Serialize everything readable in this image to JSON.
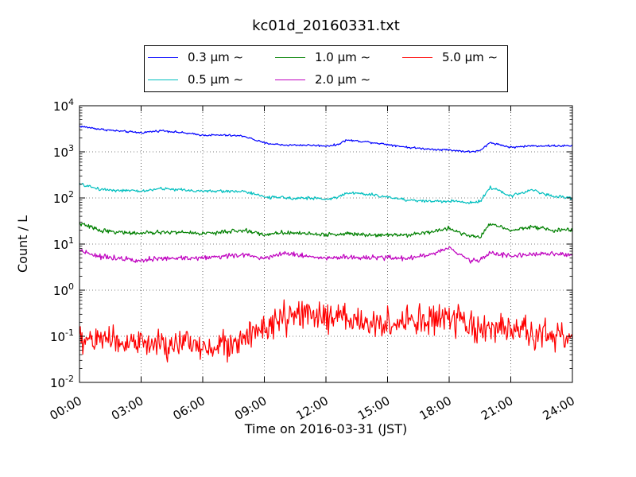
{
  "chart_data": {
    "type": "line",
    "title": "kc01d_20160331.txt",
    "xlabel": "Time on 2016-03-31 (JST)",
    "ylabel": "Count / L",
    "yscale": "log",
    "ylim": [
      0.01,
      10000
    ],
    "y_tick_labels": [
      {
        "base": "10",
        "exp": "-2"
      },
      {
        "base": "10",
        "exp": "-1"
      },
      {
        "base": "10",
        "exp": "0"
      },
      {
        "base": "10",
        "exp": "1"
      },
      {
        "base": "10",
        "exp": "2"
      },
      {
        "base": "10",
        "exp": "3"
      },
      {
        "base": "10",
        "exp": "4"
      }
    ],
    "x_ticks": [
      "00:00",
      "03:00",
      "06:00",
      "09:00",
      "12:00",
      "15:00",
      "18:00",
      "21:00",
      "24:00"
    ],
    "grid": true,
    "legend": "top-center",
    "x_hours": [
      0,
      1,
      2,
      3,
      4,
      5,
      6,
      7,
      8,
      9,
      10,
      11,
      12,
      12.5,
      13,
      14,
      15,
      16,
      17,
      18,
      19,
      19.5,
      20,
      21,
      22,
      23,
      24
    ],
    "series": [
      {
        "name": "0.3 μm ∼",
        "color": "#0000ff",
        "noise": 0.02,
        "values": [
          3600,
          3100,
          2800,
          2600,
          2900,
          2600,
          2300,
          2300,
          2200,
          1550,
          1400,
          1400,
          1350,
          1400,
          1800,
          1650,
          1450,
          1250,
          1150,
          1100,
          1000,
          1050,
          1600,
          1250,
          1350,
          1350,
          1350
        ]
      },
      {
        "name": "0.5 μm ∼",
        "color": "#00bfbf",
        "noise": 0.03,
        "values": [
          200,
          155,
          145,
          140,
          160,
          150,
          140,
          140,
          140,
          105,
          100,
          100,
          95,
          100,
          130,
          120,
          105,
          90,
          85,
          85,
          80,
          85,
          170,
          110,
          150,
          110,
          100
        ]
      },
      {
        "name": "1.0 μm ∼",
        "color": "#008000",
        "noise": 0.04,
        "values": [
          28,
          20,
          18,
          17,
          18,
          18,
          17,
          18,
          20,
          16,
          18,
          17,
          16,
          16,
          17,
          16,
          16,
          16,
          18,
          22,
          15,
          14,
          28,
          20,
          24,
          20,
          20
        ]
      },
      {
        "name": "2.0 μm ∼",
        "color": "#bf00bf",
        "noise": 0.05,
        "values": [
          7.5,
          5.3,
          5.0,
          4.5,
          4.8,
          5.0,
          5.0,
          5.5,
          5.8,
          5.0,
          6.5,
          5.5,
          5.0,
          5.0,
          5.2,
          5.0,
          5.0,
          5.0,
          5.8,
          8.0,
          4.5,
          4.5,
          6.5,
          5.5,
          6.0,
          6.0,
          6.0
        ]
      },
      {
        "name": "5.0 μm ∼",
        "color": "#ff0000",
        "noise": 0.3,
        "values": [
          0.08,
          0.09,
          0.08,
          0.07,
          0.06,
          0.07,
          0.06,
          0.07,
          0.08,
          0.15,
          0.25,
          0.28,
          0.25,
          0.24,
          0.25,
          0.2,
          0.18,
          0.2,
          0.22,
          0.25,
          0.15,
          0.15,
          0.15,
          0.12,
          0.12,
          0.1,
          0.1
        ]
      }
    ]
  }
}
